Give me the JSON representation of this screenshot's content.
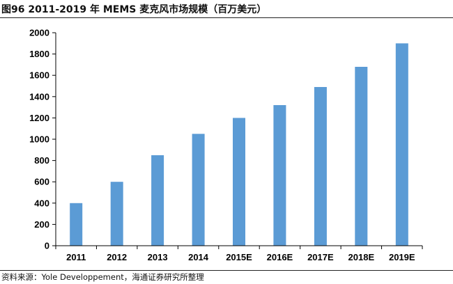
{
  "title": "图96 2011-2019 年 MEMS 麦克风市场规模（百万美元）",
  "source": "资料来源：Yole Developpement，海通证券研究所整理",
  "colors": {
    "bar": "#5b9bd5",
    "axis": "#000000"
  },
  "chart_data": {
    "type": "bar",
    "categories": [
      "2011",
      "2012",
      "2013",
      "2014",
      "2015E",
      "2016E",
      "2017E",
      "2018E",
      "2019E"
    ],
    "values": [
      400,
      600,
      850,
      1050,
      1200,
      1320,
      1490,
      1680,
      1900
    ],
    "ylim": [
      0,
      2000
    ],
    "yticks": [
      0,
      200,
      400,
      600,
      800,
      1000,
      1200,
      1400,
      1600,
      1800,
      2000
    ],
    "grid": false,
    "legend": "none"
  }
}
